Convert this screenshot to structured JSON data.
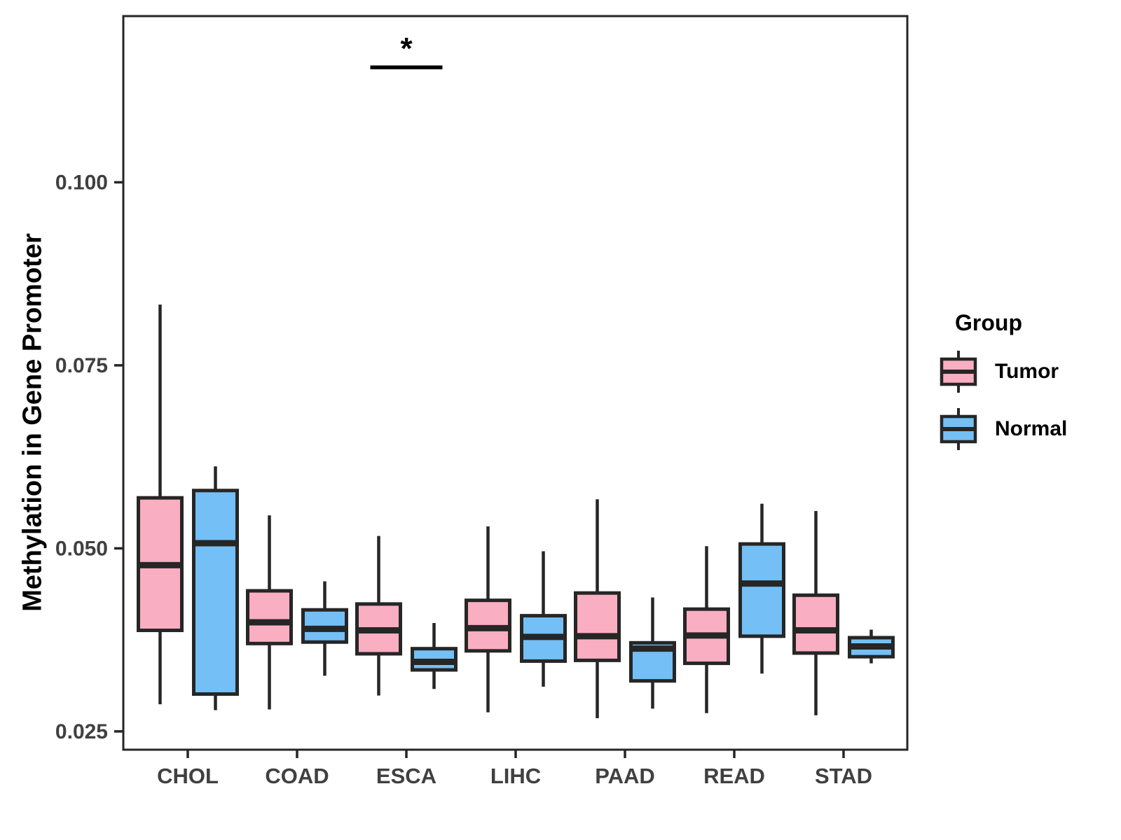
{
  "chart_data": {
    "type": "boxplot",
    "title": "",
    "xlabel": "",
    "ylabel": "Methylation in Gene Promoter",
    "categories": [
      "CHOL",
      "COAD",
      "ESCA",
      "LIHC",
      "PAAD",
      "READ",
      "STAD"
    ],
    "yticks": [
      0.025,
      0.05,
      0.075,
      0.1
    ],
    "ytick_labels": [
      "0.025",
      "0.050",
      "0.075",
      "0.100"
    ],
    "ylim": [
      0.0225,
      0.1227
    ],
    "grid": false,
    "colors": {
      "tumor_fill": "#FAAEC1",
      "normal_fill": "#74BFF5",
      "box_stroke": "#262626",
      "axis_text": "#404040",
      "axis_line": "#262626"
    },
    "legend": {
      "title": "Group",
      "position": "right",
      "entries": [
        {
          "label": "Tumor",
          "color": "#FAAEC1"
        },
        {
          "label": "Normal",
          "color": "#74BFF5"
        }
      ]
    },
    "series": [
      {
        "name": "Tumor",
        "color": "#FAAEC1",
        "boxes": [
          {
            "category": "CHOL",
            "min": 0.0287,
            "q1": 0.0388,
            "median": 0.0477,
            "q3": 0.0569,
            "max": 0.0833
          },
          {
            "category": "COAD",
            "min": 0.028,
            "q1": 0.037,
            "median": 0.0399,
            "q3": 0.0442,
            "max": 0.0545
          },
          {
            "category": "ESCA",
            "min": 0.0299,
            "q1": 0.0356,
            "median": 0.0388,
            "q3": 0.0424,
            "max": 0.0517
          },
          {
            "category": "LIHC",
            "min": 0.0276,
            "q1": 0.036,
            "median": 0.0391,
            "q3": 0.0429,
            "max": 0.053
          },
          {
            "category": "PAAD",
            "min": 0.0268,
            "q1": 0.0347,
            "median": 0.038,
            "q3": 0.0439,
            "max": 0.0567
          },
          {
            "category": "READ",
            "min": 0.0275,
            "q1": 0.0343,
            "median": 0.0381,
            "q3": 0.0417,
            "max": 0.0503
          },
          {
            "category": "STAD",
            "min": 0.0272,
            "q1": 0.0357,
            "median": 0.0388,
            "q3": 0.0436,
            "max": 0.0551
          }
        ]
      },
      {
        "name": "Normal",
        "color": "#74BFF5",
        "boxes": [
          {
            "category": "CHOL",
            "min": 0.0279,
            "q1": 0.0301,
            "median": 0.0507,
            "q3": 0.0579,
            "max": 0.0612
          },
          {
            "category": "COAD",
            "min": 0.0326,
            "q1": 0.0372,
            "median": 0.039,
            "q3": 0.0416,
            "max": 0.0455
          },
          {
            "category": "ESCA",
            "min": 0.0308,
            "q1": 0.0334,
            "median": 0.0345,
            "q3": 0.0363,
            "max": 0.0398
          },
          {
            "category": "LIHC",
            "min": 0.0311,
            "q1": 0.0346,
            "median": 0.0379,
            "q3": 0.0408,
            "max": 0.0496
          },
          {
            "category": "PAAD",
            "min": 0.0281,
            "q1": 0.0319,
            "median": 0.0363,
            "q3": 0.0371,
            "max": 0.0433
          },
          {
            "category": "READ",
            "min": 0.0329,
            "q1": 0.038,
            "median": 0.0452,
            "q3": 0.0506,
            "max": 0.0561
          },
          {
            "category": "STAD",
            "min": 0.0343,
            "q1": 0.0352,
            "median": 0.0366,
            "q3": 0.0378,
            "max": 0.0389
          }
        ]
      }
    ],
    "annotation": {
      "label": "*",
      "category": "ESCA",
      "bar_y": 0.1157,
      "between": [
        "Tumor",
        "Normal"
      ]
    }
  }
}
